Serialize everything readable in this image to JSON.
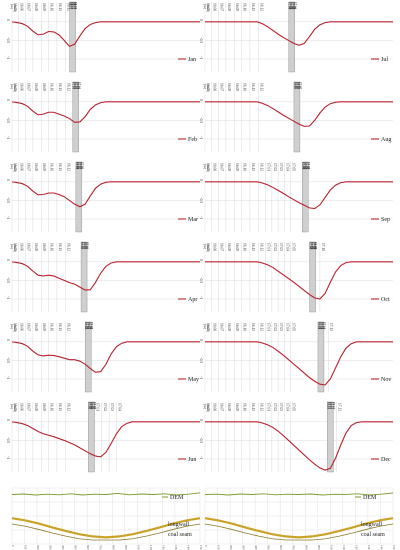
{
  "colors": {
    "subsidence": "#b8202c",
    "dem": "#7f9a2e",
    "longwall": "#c9a227",
    "coal_seam": "#8a7a2a",
    "face_band": "#cfcfcf",
    "grid": "#d9d9d9"
  },
  "chart_data": [
    {
      "type": "line",
      "panel": "monthly-subsidence-profiles",
      "y_ticks": [
        "0",
        "-0.5",
        "-1"
      ],
      "y_unit": "[m]",
      "x_unit": "[date]",
      "x": [
        0,
        50,
        100,
        150,
        200,
        250,
        300,
        350,
        400,
        450,
        500,
        550,
        600,
        650,
        700,
        750,
        800,
        850,
        900,
        950,
        1000,
        1050,
        1100,
        1150,
        1200,
        1250,
        1300,
        1350,
        1400,
        1450,
        1500,
        1550,
        1600,
        1650,
        1700,
        1750,
        1800
      ],
      "series": [
        {
          "name": "Jan",
          "face_x": 580,
          "face_labels": [
            "16.12",
            "16.12",
            "16.12",
            "16.12",
            "16.12"
          ],
          "x_tick_labels": [
            "16.05",
            "16.06",
            "16.07",
            "16.08",
            "16.09",
            "16.10",
            "16.11",
            "16.12"
          ],
          "x_tick_positions": [
            0,
            60,
            130,
            200,
            280,
            350,
            430,
            510
          ],
          "values": [
            0,
            -0.02,
            -0.05,
            -0.12,
            -0.25,
            -0.35,
            -0.33,
            -0.26,
            -0.27,
            -0.35,
            -0.5,
            -0.66,
            -0.6,
            -0.38,
            -0.18,
            -0.07,
            -0.02,
            0,
            0,
            0,
            0,
            0,
            0,
            0,
            0,
            0,
            0,
            0,
            0,
            0,
            0,
            0,
            0,
            0,
            0,
            0,
            0
          ]
        },
        {
          "name": "Feb",
          "face_x": 610,
          "face_labels": [
            "17.01",
            "17.01",
            "17.01",
            "17.01",
            "17.01"
          ],
          "x_tick_labels": [
            "16.05",
            "16.06",
            "16.07",
            "16.08",
            "16.09",
            "16.10",
            "16.11",
            "16.12"
          ],
          "x_tick_positions": [
            0,
            60,
            130,
            200,
            280,
            350,
            430,
            510
          ],
          "values": [
            0,
            -0.02,
            -0.05,
            -0.12,
            -0.25,
            -0.35,
            -0.33,
            -0.28,
            -0.28,
            -0.33,
            -0.38,
            -0.45,
            -0.55,
            -0.54,
            -0.4,
            -0.2,
            -0.08,
            -0.02,
            0,
            0,
            0,
            0,
            0,
            0,
            0,
            0,
            0,
            0,
            0,
            0,
            0,
            0,
            0,
            0,
            0,
            0,
            0
          ]
        },
        {
          "name": "Mar",
          "face_x": 640,
          "face_labels": [
            "17.02",
            "17.02",
            "17.02",
            "17.02",
            "17.02"
          ],
          "x_tick_labels": [
            "16.05",
            "16.06",
            "16.07",
            "16.08",
            "16.09",
            "16.10",
            "16.11",
            "16.12"
          ],
          "x_tick_positions": [
            0,
            60,
            130,
            200,
            280,
            350,
            430,
            510
          ],
          "values": [
            0,
            -0.02,
            -0.05,
            -0.12,
            -0.25,
            -0.35,
            -0.34,
            -0.3,
            -0.3,
            -0.34,
            -0.4,
            -0.5,
            -0.6,
            -0.67,
            -0.6,
            -0.38,
            -0.17,
            -0.06,
            -0.01,
            0,
            0,
            0,
            0,
            0,
            0,
            0,
            0,
            0,
            0,
            0,
            0,
            0,
            0,
            0,
            0,
            0,
            0
          ]
        },
        {
          "name": "Apr",
          "face_x": 690,
          "face_labels": [
            "17.03",
            "17.03",
            "17.03",
            "17.03",
            "17.03"
          ],
          "x_tick_labels": [
            "16.05",
            "16.06",
            "16.07",
            "16.08",
            "16.09",
            "16.10",
            "16.11",
            "16.12"
          ],
          "x_tick_positions": [
            0,
            60,
            130,
            200,
            280,
            350,
            430,
            510
          ],
          "values": [
            0,
            -0.02,
            -0.05,
            -0.12,
            -0.25,
            -0.36,
            -0.38,
            -0.36,
            -0.38,
            -0.44,
            -0.5,
            -0.56,
            -0.6,
            -0.68,
            -0.76,
            -0.75,
            -0.55,
            -0.3,
            -0.12,
            -0.03,
            0,
            0,
            0,
            0,
            0,
            0,
            0,
            0,
            0,
            0,
            0,
            0,
            0,
            0,
            0,
            0,
            0
          ]
        },
        {
          "name": "May",
          "face_x": 730,
          "face_labels": [
            "17.04",
            "17.04",
            "17.04",
            "17.04",
            "17.04"
          ],
          "x_tick_labels": [
            "16.05",
            "16.06",
            "16.07",
            "16.08",
            "16.09",
            "16.10",
            "16.11",
            "16.12"
          ],
          "x_tick_positions": [
            0,
            60,
            130,
            200,
            280,
            350,
            430,
            510
          ],
          "values": [
            0,
            -0.02,
            -0.05,
            -0.12,
            -0.25,
            -0.35,
            -0.38,
            -0.36,
            -0.37,
            -0.4,
            -0.44,
            -0.48,
            -0.48,
            -0.52,
            -0.6,
            -0.72,
            -0.82,
            -0.8,
            -0.6,
            -0.32,
            -0.13,
            -0.04,
            0,
            0,
            0,
            0,
            0,
            0,
            0,
            0,
            0,
            0,
            0,
            0,
            0,
            0,
            0
          ]
        },
        {
          "name": "Jun",
          "face_x": 760,
          "face_labels": [
            "17.05",
            "17.05",
            "17.05",
            "17.05",
            "17.05"
          ],
          "x_tick_labels": [
            "16.05",
            "16.06",
            "16.07",
            "16.08",
            "16.09",
            "16.10",
            "16.11",
            "16.12",
            "17.01",
            "17.02",
            "17.03",
            "17.04"
          ],
          "x_tick_positions": [
            0,
            60,
            130,
            200,
            280,
            350,
            430,
            510,
            790,
            860,
            930,
            1000
          ],
          "values": [
            0,
            -0.02,
            -0.05,
            -0.1,
            -0.18,
            -0.26,
            -0.32,
            -0.36,
            -0.4,
            -0.45,
            -0.5,
            -0.56,
            -0.62,
            -0.7,
            -0.78,
            -0.86,
            -0.92,
            -0.94,
            -0.82,
            -0.58,
            -0.32,
            -0.13,
            -0.04,
            0,
            0,
            0,
            0,
            0,
            0,
            0,
            0,
            0,
            0,
            0,
            0,
            0,
            0
          ]
        },
        {
          "name": "Jul",
          "face_x": 830,
          "face_labels": [
            "17.06",
            "17.06",
            "17.06",
            "17.06",
            "17.06"
          ],
          "x_tick_labels": [
            "16.05",
            "16.06",
            "16.07",
            "16.08",
            "16.09",
            "16.10",
            "16.11",
            "16.12"
          ],
          "x_tick_positions": [
            0,
            60,
            130,
            200,
            280,
            350,
            430,
            510
          ],
          "values": [
            0,
            0,
            0,
            0,
            0,
            0,
            0,
            0,
            0,
            0,
            0,
            -0.05,
            -0.13,
            -0.23,
            -0.33,
            -0.42,
            -0.5,
            -0.58,
            -0.63,
            -0.58,
            -0.4,
            -0.2,
            -0.08,
            -0.02,
            0,
            0,
            0,
            0,
            0,
            0,
            0,
            0,
            0,
            0,
            0,
            0,
            0
          ]
        },
        {
          "name": "Aug",
          "face_x": 880,
          "face_labels": [
            "17.07",
            "17.07",
            "17.07",
            "17.07",
            "17.07"
          ],
          "x_tick_labels": [
            "16.05",
            "16.06",
            "16.07",
            "16.08",
            "16.09",
            "16.10",
            "16.11",
            "16.12"
          ],
          "x_tick_positions": [
            0,
            60,
            130,
            200,
            280,
            350,
            430,
            510
          ],
          "values": [
            0,
            0,
            0,
            0,
            0,
            0,
            0,
            0,
            0,
            0,
            0,
            -0.04,
            -0.1,
            -0.18,
            -0.27,
            -0.36,
            -0.44,
            -0.52,
            -0.6,
            -0.66,
            -0.65,
            -0.5,
            -0.3,
            -0.14,
            -0.05,
            -0.01,
            0,
            0,
            0,
            0,
            0,
            0,
            0,
            0,
            0,
            0,
            0
          ]
        },
        {
          "name": "Sep",
          "face_x": 960,
          "face_labels": [
            "17.08",
            "17.08",
            "17.08",
            "17.08",
            "17.08"
          ],
          "x_tick_labels": [
            "16.05",
            "16.06",
            "16.07",
            "16.08",
            "16.09",
            "16.10",
            "16.11",
            "16.12",
            "17.01",
            "17.02",
            "17.03",
            "17.04",
            "17.05"
          ],
          "x_tick_positions": [
            0,
            60,
            130,
            200,
            280,
            350,
            430,
            510,
            580,
            640,
            700,
            760,
            820
          ],
          "values": [
            0,
            0,
            0,
            0,
            0,
            0,
            0,
            0,
            0,
            0,
            0,
            -0.03,
            -0.08,
            -0.15,
            -0.23,
            -0.31,
            -0.4,
            -0.48,
            -0.56,
            -0.63,
            -0.7,
            -0.72,
            -0.62,
            -0.42,
            -0.22,
            -0.09,
            -0.02,
            0,
            0,
            0,
            0,
            0,
            0,
            0,
            0,
            0,
            0
          ]
        },
        {
          "name": "Oct",
          "face_x": 1030,
          "face_labels": [
            "17.09",
            "17.09",
            "17.09",
            "17.09",
            "17.09"
          ],
          "x_tick_labels": [
            "16.05",
            "16.06",
            "16.07",
            "16.08",
            "16.09",
            "16.10",
            "16.11",
            "16.12",
            "17.01",
            "17.02",
            "17.03",
            "17.04",
            "17.05",
            "17.10"
          ],
          "x_tick_positions": [
            0,
            60,
            130,
            200,
            280,
            350,
            430,
            510,
            580,
            640,
            700,
            760,
            820,
            1100
          ],
          "values": [
            0,
            0,
            0,
            0,
            0,
            0,
            0,
            0,
            0,
            0,
            0,
            -0.03,
            -0.08,
            -0.15,
            -0.25,
            -0.35,
            -0.45,
            -0.55,
            -0.66,
            -0.77,
            -0.88,
            -0.97,
            -1.0,
            -0.85,
            -0.55,
            -0.27,
            -0.1,
            -0.02,
            0,
            0,
            0,
            0,
            0,
            0,
            0,
            0,
            0
          ]
        },
        {
          "name": "Nov",
          "face_x": 1110,
          "face_labels": [
            "17.10",
            "17.10",
            "17.10",
            "17.10",
            "17.10"
          ],
          "x_tick_labels": [
            "16.05",
            "16.06",
            "16.07",
            "16.08",
            "16.09",
            "16.10",
            "16.11",
            "16.12",
            "17.01",
            "17.02",
            "17.03",
            "17.04",
            "17.05",
            "17.11"
          ],
          "x_tick_positions": [
            0,
            60,
            130,
            200,
            280,
            350,
            430,
            510,
            580,
            640,
            700,
            760,
            820,
            1180
          ],
          "values": [
            0,
            0,
            0,
            0,
            0,
            0,
            0,
            0,
            0,
            0,
            0,
            -0.03,
            -0.08,
            -0.15,
            -0.25,
            -0.36,
            -0.48,
            -0.6,
            -0.72,
            -0.84,
            -0.96,
            -1.06,
            -1.14,
            -1.16,
            -1.0,
            -0.7,
            -0.4,
            -0.17,
            -0.05,
            0,
            0,
            0,
            0,
            0,
            0,
            0,
            0
          ]
        },
        {
          "name": "Dec",
          "face_x": 1200,
          "face_labels": [
            "17.11",
            "17.11",
            "17.11",
            "17.11",
            "17.11"
          ],
          "x_tick_labels": [
            "16.05",
            "16.06",
            "16.07",
            "16.08",
            "16.09",
            "16.10",
            "16.11",
            "16.12",
            "17.01",
            "17.02",
            "17.03",
            "17.04",
            "17.05",
            "17.12"
          ],
          "x_tick_positions": [
            0,
            60,
            130,
            200,
            280,
            350,
            430,
            510,
            580,
            640,
            700,
            760,
            820,
            1260
          ],
          "values": [
            0,
            0,
            0,
            0,
            0,
            0,
            0,
            0,
            0,
            0,
            0,
            -0.03,
            -0.08,
            -0.15,
            -0.25,
            -0.37,
            -0.5,
            -0.63,
            -0.76,
            -0.89,
            -1.02,
            -1.14,
            -1.24,
            -1.3,
            -1.25,
            -0.98,
            -0.62,
            -0.3,
            -0.1,
            -0.02,
            0,
            0,
            0,
            0,
            0,
            0,
            0
          ]
        }
      ]
    },
    {
      "type": "line",
      "panel": "cross-section",
      "series": [
        {
          "name": "DEM",
          "values_left": [
            0.55,
            0.6,
            0.5,
            0.58,
            0.52,
            0.62,
            0.5,
            0.58,
            0.55,
            0.66,
            0.52,
            0.6,
            0.55,
            0.62,
            0.5,
            0.58,
            0.72
          ],
          "values_right": [
            0.55,
            0.58,
            0.5,
            0.6,
            0.55,
            0.62,
            0.52,
            0.58,
            0.55,
            0.6,
            0.5,
            0.57,
            0.56,
            0.62,
            0.5,
            0.58,
            0.7
          ]
        },
        {
          "name": "longwall",
          "values": [
            0.62,
            0.55,
            0.45,
            0.33,
            0.22,
            0.12,
            0.05,
            0.02,
            0.05,
            0.12,
            0.22,
            0.33,
            0.45,
            0.55,
            0.62
          ]
        },
        {
          "name": "coal seam",
          "values": [
            0.5,
            0.43,
            0.33,
            0.22,
            0.12,
            0.04,
            0.0,
            0.0,
            0.0,
            0.04,
            0.12,
            0.22,
            0.33,
            0.43,
            0.5
          ]
        }
      ],
      "x_ticks": [
        "0",
        "100",
        "200",
        "300",
        "400",
        "500",
        "600",
        "700",
        "800",
        "900",
        "1000",
        "1100",
        "1200",
        "1300",
        "1400",
        "1500"
      ],
      "labels": {
        "dem": "DEM",
        "longwall": "longwall",
        "coal_seam": "coal seam"
      }
    }
  ]
}
